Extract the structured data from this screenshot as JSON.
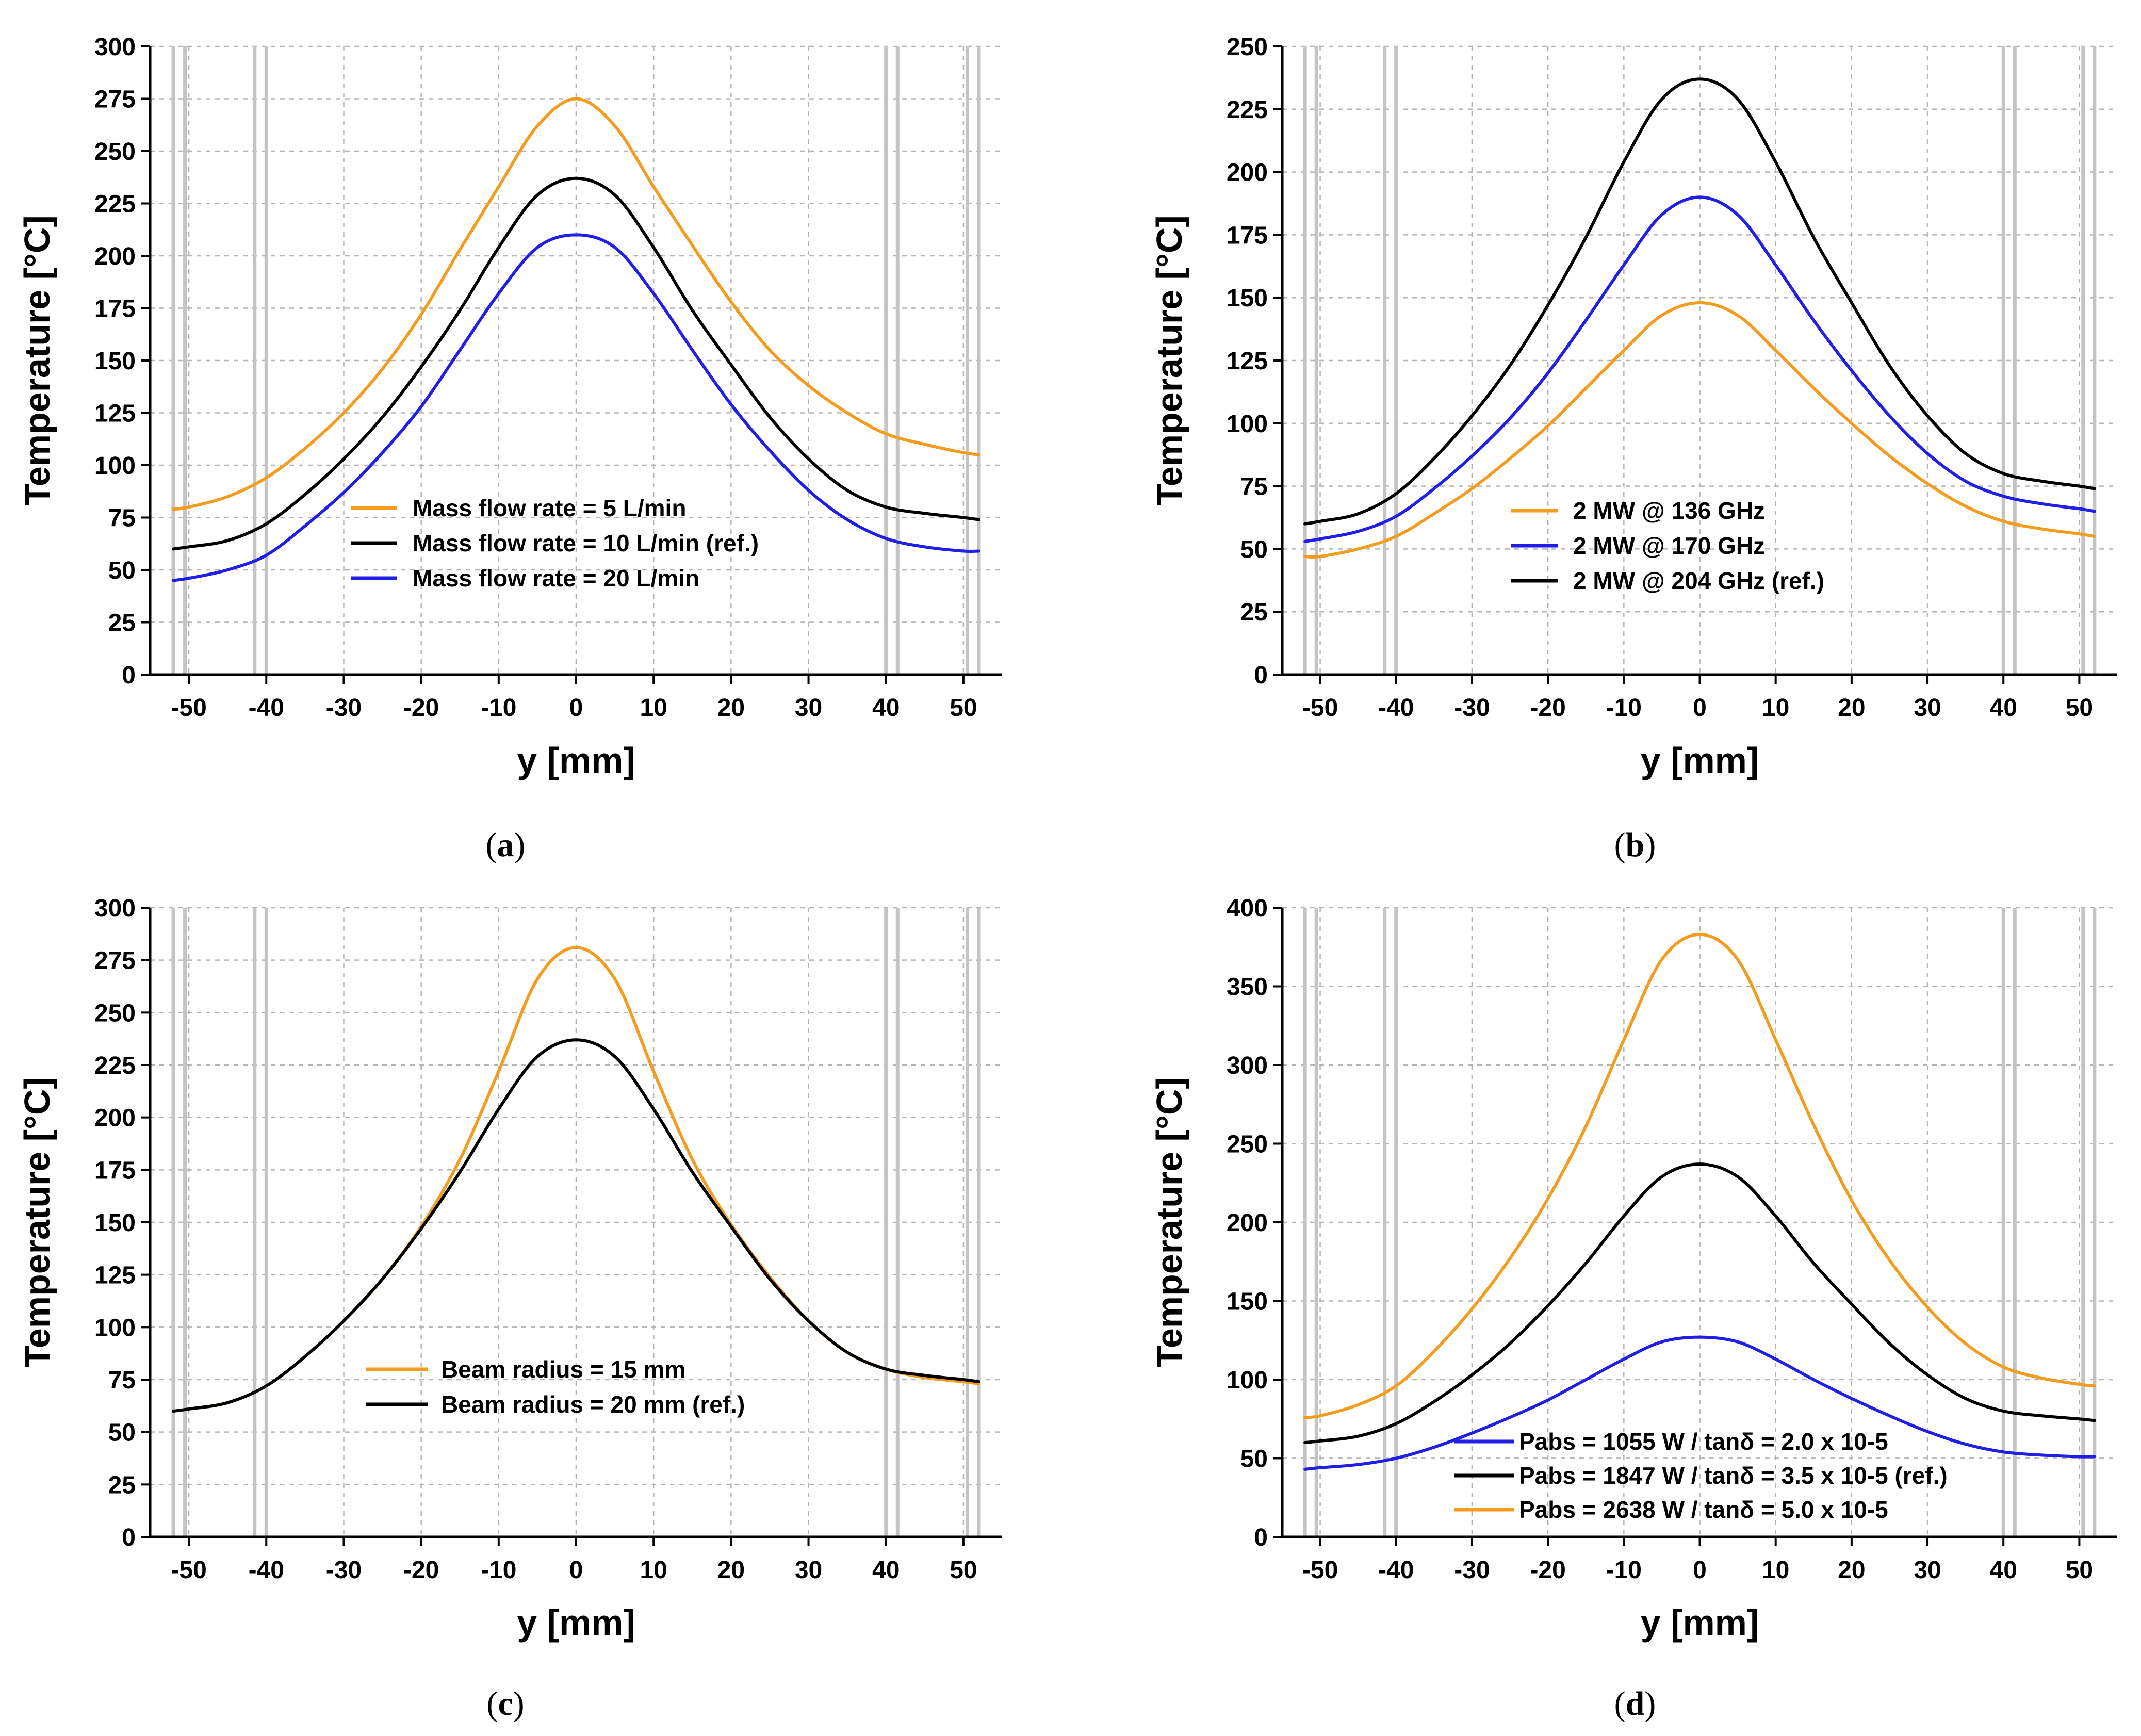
{
  "figure": {
    "panels": [
      {
        "caption_letter": "a"
      },
      {
        "caption_letter": "b"
      },
      {
        "caption_letter": "c"
      },
      {
        "caption_letter": "d"
      }
    ]
  },
  "chart_data": [
    {
      "type": "line",
      "panel": "a",
      "title": "",
      "xlabel": "y [mm]",
      "ylabel": "Temperature [°C]",
      "xlim": [
        -55,
        55
      ],
      "ylim": [
        0,
        300
      ],
      "xticks": [
        -50,
        -40,
        -30,
        -20,
        -10,
        0,
        10,
        20,
        30,
        40,
        50
      ],
      "yticks": [
        0,
        25,
        50,
        75,
        100,
        125,
        150,
        175,
        200,
        225,
        250,
        275,
        300
      ],
      "grid": true,
      "legend_position": "bottom-center",
      "vertical_reference_lines": [
        -52,
        -50.5,
        -41.5,
        -40,
        40,
        41.5,
        50.5,
        52
      ],
      "x": [
        -52,
        -50,
        -45,
        -40,
        -35,
        -30,
        -25,
        -20,
        -15,
        -10,
        -5,
        0,
        5,
        10,
        15,
        20,
        25,
        30,
        35,
        40,
        45,
        50,
        52
      ],
      "series": [
        {
          "name": "Mass flow rate = 5 L/min",
          "color": "#F39C1F",
          "values": [
            79,
            80,
            85,
            94,
            108,
            125,
            146,
            172,
            203,
            233,
            262,
            275,
            262,
            233,
            205,
            178,
            155,
            138,
            125,
            115,
            110,
            106,
            105
          ]
        },
        {
          "name": "Mass flow rate = 10 L/min (ref.)",
          "color": "#000000",
          "values": [
            60,
            61,
            64,
            72,
            86,
            103,
            123,
            147,
            174,
            204,
            229,
            237,
            229,
            204,
            174,
            148,
            123,
            103,
            88,
            80,
            77,
            75,
            74
          ]
        },
        {
          "name": "Mass flow rate = 20 L/min",
          "color": "#1F1FE5",
          "values": [
            45,
            46,
            50,
            57,
            71,
            87,
            106,
            128,
            155,
            182,
            204,
            210,
            204,
            182,
            155,
            129,
            107,
            88,
            74,
            65,
            61,
            59,
            59
          ]
        }
      ]
    },
    {
      "type": "line",
      "panel": "b",
      "title": "",
      "xlabel": "y [mm]",
      "ylabel": "Temperature [°C]",
      "xlim": [
        -55,
        55
      ],
      "ylim": [
        0,
        250
      ],
      "xticks": [
        -50,
        -40,
        -30,
        -20,
        -10,
        0,
        10,
        20,
        30,
        40,
        50
      ],
      "yticks": [
        0,
        25,
        50,
        75,
        100,
        125,
        150,
        175,
        200,
        225,
        250
      ],
      "grid": true,
      "legend_position": "center",
      "vertical_reference_lines": [
        -52,
        -50.5,
        -41.5,
        -40,
        40,
        41.5,
        50.5,
        52
      ],
      "x": [
        -52,
        -50,
        -45,
        -40,
        -35,
        -30,
        -25,
        -20,
        -15,
        -10,
        -5,
        0,
        5,
        10,
        15,
        20,
        25,
        30,
        35,
        40,
        45,
        50,
        52
      ],
      "series": [
        {
          "name": "2 MW @ 136 GHz",
          "color": "#F39C1F",
          "values": [
            47,
            47,
            50,
            55,
            64,
            74,
            86,
            99,
            114,
            129,
            143,
            148,
            143,
            129,
            114,
            100,
            87,
            76,
            67,
            61,
            58,
            56,
            55
          ]
        },
        {
          "name": "2 MW @ 170 GHz",
          "color": "#1F1FE5",
          "values": [
            53,
            54,
            57,
            63,
            74,
            87,
            102,
            120,
            141,
            163,
            183,
            190,
            183,
            163,
            141,
            121,
            103,
            88,
            77,
            71,
            68,
            66,
            65
          ]
        },
        {
          "name": "2 MW @ 204 GHz (ref.)",
          "color": "#000000",
          "values": [
            60,
            61,
            64,
            72,
            86,
            103,
            123,
            147,
            174,
            204,
            229,
            237,
            229,
            204,
            174,
            148,
            123,
            103,
            88,
            80,
            77,
            75,
            74
          ]
        }
      ]
    },
    {
      "type": "line",
      "panel": "c",
      "title": "",
      "xlabel": "y [mm]",
      "ylabel": "Temperature [°C]",
      "xlim": [
        -55,
        55
      ],
      "ylim": [
        0,
        300
      ],
      "xticks": [
        -50,
        -40,
        -30,
        -20,
        -10,
        0,
        10,
        20,
        30,
        40,
        50
      ],
      "yticks": [
        0,
        25,
        50,
        75,
        100,
        125,
        150,
        175,
        200,
        225,
        250,
        275,
        300
      ],
      "grid": true,
      "legend_position": "bottom-center",
      "vertical_reference_lines": [
        -52,
        -50.5,
        -41.5,
        -40,
        40,
        41.5,
        50.5,
        52
      ],
      "x": [
        -52,
        -50,
        -45,
        -40,
        -35,
        -30,
        -25,
        -20,
        -15,
        -10,
        -5,
        0,
        5,
        10,
        15,
        20,
        25,
        30,
        35,
        40,
        45,
        50,
        52
      ],
      "series": [
        {
          "name": "Beam radius = 15 mm",
          "color": "#F39C1F",
          "values": [
            60,
            61,
            64,
            72,
            86,
            103,
            123,
            148,
            180,
            222,
            266,
            281,
            266,
            222,
            180,
            149,
            124,
            103,
            88,
            80,
            76,
            74,
            73
          ]
        },
        {
          "name": "Beam radius = 20 mm (ref.)",
          "color": "#000000",
          "values": [
            60,
            61,
            64,
            72,
            86,
            103,
            123,
            147,
            174,
            204,
            229,
            237,
            229,
            204,
            174,
            148,
            123,
            103,
            88,
            80,
            77,
            75,
            74
          ]
        }
      ]
    },
    {
      "type": "line",
      "panel": "d",
      "title": "",
      "xlabel": "y [mm]",
      "ylabel": "Temperature [°C]",
      "xlim": [
        -55,
        55
      ],
      "ylim": [
        0,
        400
      ],
      "xticks": [
        -50,
        -40,
        -30,
        -20,
        -10,
        0,
        10,
        20,
        30,
        40,
        50
      ],
      "yticks": [
        0,
        50,
        100,
        150,
        200,
        250,
        300,
        350,
        400
      ],
      "grid": true,
      "legend_position": "bottom-center",
      "vertical_reference_lines": [
        -52,
        -50.5,
        -41.5,
        -40,
        40,
        41.5,
        50.5,
        52
      ],
      "x": [
        -52,
        -50,
        -45,
        -40,
        -35,
        -30,
        -25,
        -20,
        -15,
        -10,
        -5,
        0,
        5,
        10,
        15,
        20,
        25,
        30,
        35,
        40,
        45,
        50,
        52
      ],
      "series": [
        {
          "name": "Pabs = 1055 W / tanδ = 2.0 x 10-5",
          "color": "#1F1FE5",
          "values": [
            43,
            44,
            46,
            50,
            57,
            66,
            76,
            87,
            100,
            113,
            124,
            127,
            124,
            113,
            100,
            88,
            77,
            67,
            59,
            54,
            52,
            51,
            51
          ]
        },
        {
          "name": "Pabs = 1847 W / tanδ = 3.5 x 10-5 (ref.)",
          "color": "#000000",
          "values": [
            60,
            61,
            64,
            72,
            86,
            103,
            123,
            147,
            174,
            204,
            229,
            237,
            229,
            204,
            174,
            148,
            123,
            103,
            88,
            80,
            77,
            75,
            74
          ]
        },
        {
          "name": "Pabs = 2638 W / tanδ = 5.0 x 10-5",
          "color": "#F39C1F",
          "values": [
            76,
            77,
            84,
            96,
            118,
            145,
            177,
            215,
            261,
            316,
            367,
            383,
            367,
            316,
            262,
            214,
            176,
            146,
            123,
            108,
            101,
            97,
            96
          ]
        }
      ]
    }
  ]
}
